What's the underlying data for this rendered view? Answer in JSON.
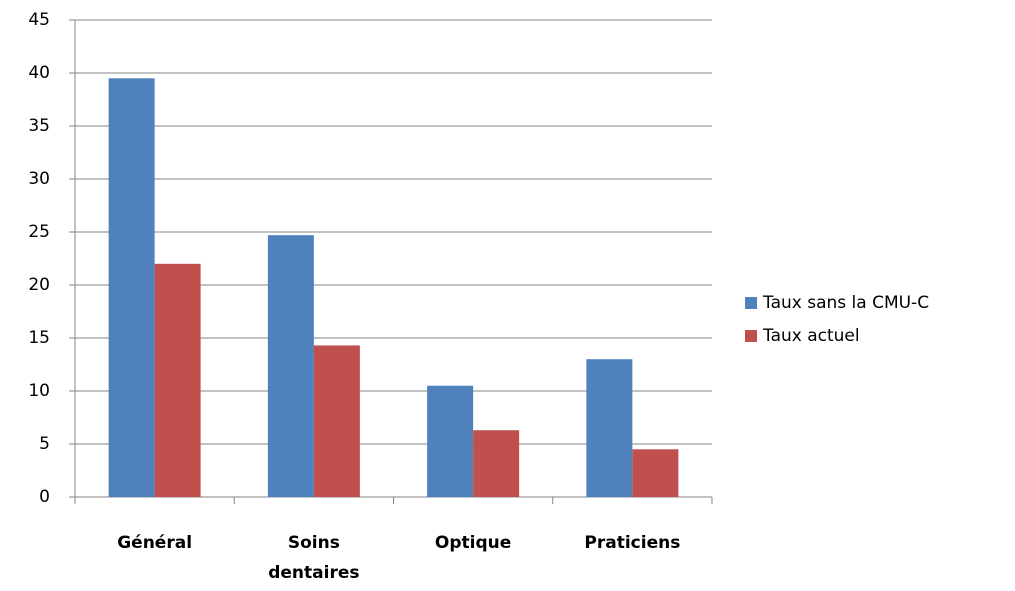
{
  "chart_data": {
    "type": "bar",
    "categories": [
      "Général",
      "Soins dentaires",
      "Optique",
      "Praticiens"
    ],
    "series": [
      {
        "name": "Taux sans la CMU-C",
        "color": "#4f81bd",
        "values": [
          39.5,
          24.7,
          10.5,
          13.0
        ]
      },
      {
        "name": "Taux actuel",
        "color": "#c0504d",
        "values": [
          22.0,
          14.3,
          6.3,
          4.5
        ]
      }
    ],
    "ylim": [
      0,
      45
    ],
    "yticks": [
      0,
      5,
      10,
      15,
      20,
      25,
      30,
      35,
      40,
      45
    ],
    "grid": true,
    "legend": "right"
  }
}
